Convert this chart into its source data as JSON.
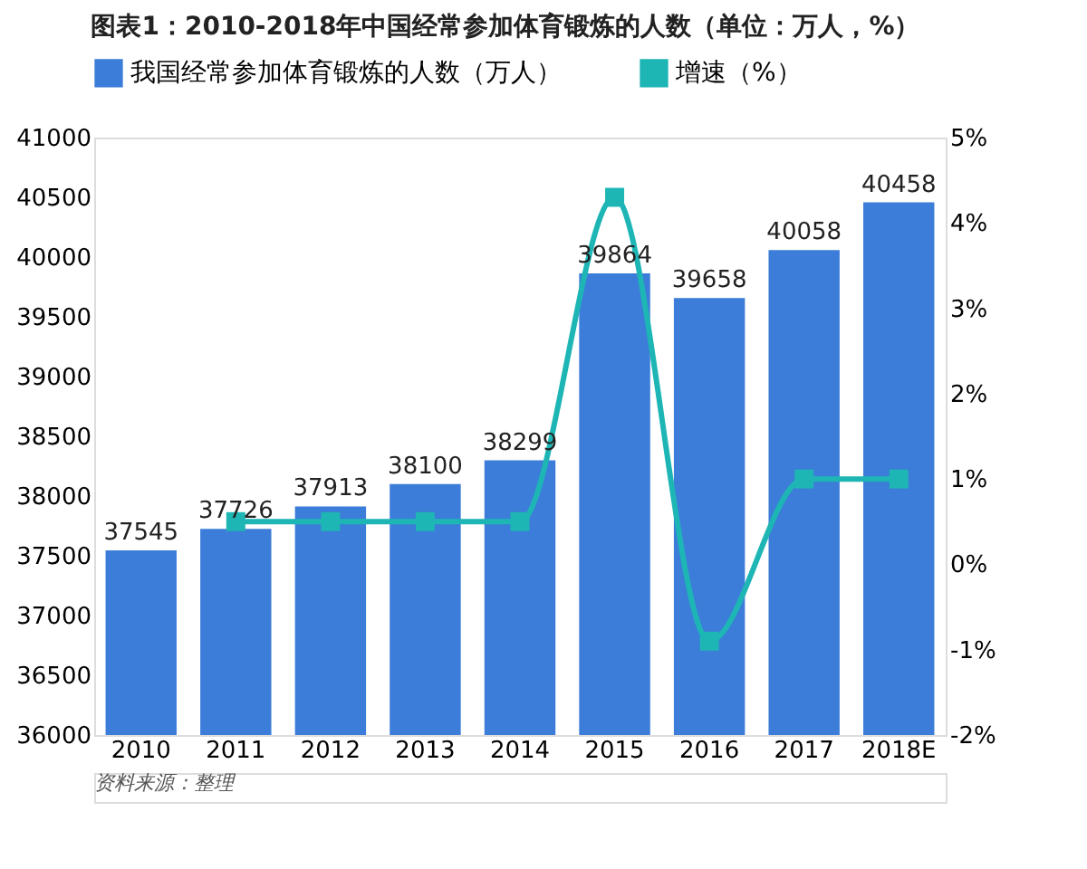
{
  "chart_data": {
    "type": "bar",
    "title": "图表1：2010-2018年中国经常参加体育锻炼的人数（单位：万人，%）",
    "categories": [
      "2010",
      "2011",
      "2012",
      "2013",
      "2014",
      "2015",
      "2016",
      "2017",
      "2018E"
    ],
    "series": [
      {
        "name": "我国经常参加体育锻炼的人数（万人）",
        "color": "#3b7dd8",
        "values": [
          37545,
          37726,
          37913,
          38100,
          38299,
          39864,
          39658,
          40058,
          40458
        ],
        "value_labels": [
          "37545",
          "37726",
          "37913",
          "38100",
          "38299",
          "39864",
          "39658",
          "40058",
          "40458"
        ]
      },
      {
        "name": "增速（%）",
        "type": "line",
        "axis": "y2",
        "color": "#1eb5b5",
        "marker": "square",
        "values": [
          null,
          0.5,
          0.5,
          0.5,
          0.5,
          4.3,
          -0.9,
          1.0,
          1.0
        ]
      }
    ],
    "ylim": [
      36000,
      41000
    ],
    "yticks": [
      36000,
      36500,
      37000,
      37500,
      38000,
      38500,
      39000,
      39500,
      40000,
      40500,
      41000
    ],
    "y2lim": [
      -2,
      5
    ],
    "y2ticks": [
      {
        "value": -2,
        "label": "-2%"
      },
      {
        "value": -1,
        "label": "-1%"
      },
      {
        "value": 0,
        "label": "0%"
      },
      {
        "value": 1,
        "label": "1%"
      },
      {
        "value": 2,
        "label": "2%"
      },
      {
        "value": 3,
        "label": "3%"
      },
      {
        "value": 4,
        "label": "4%"
      },
      {
        "value": 5,
        "label": "5%"
      }
    ],
    "grid": false,
    "legend": "top",
    "annotations": [
      "资料来源：整理"
    ]
  }
}
